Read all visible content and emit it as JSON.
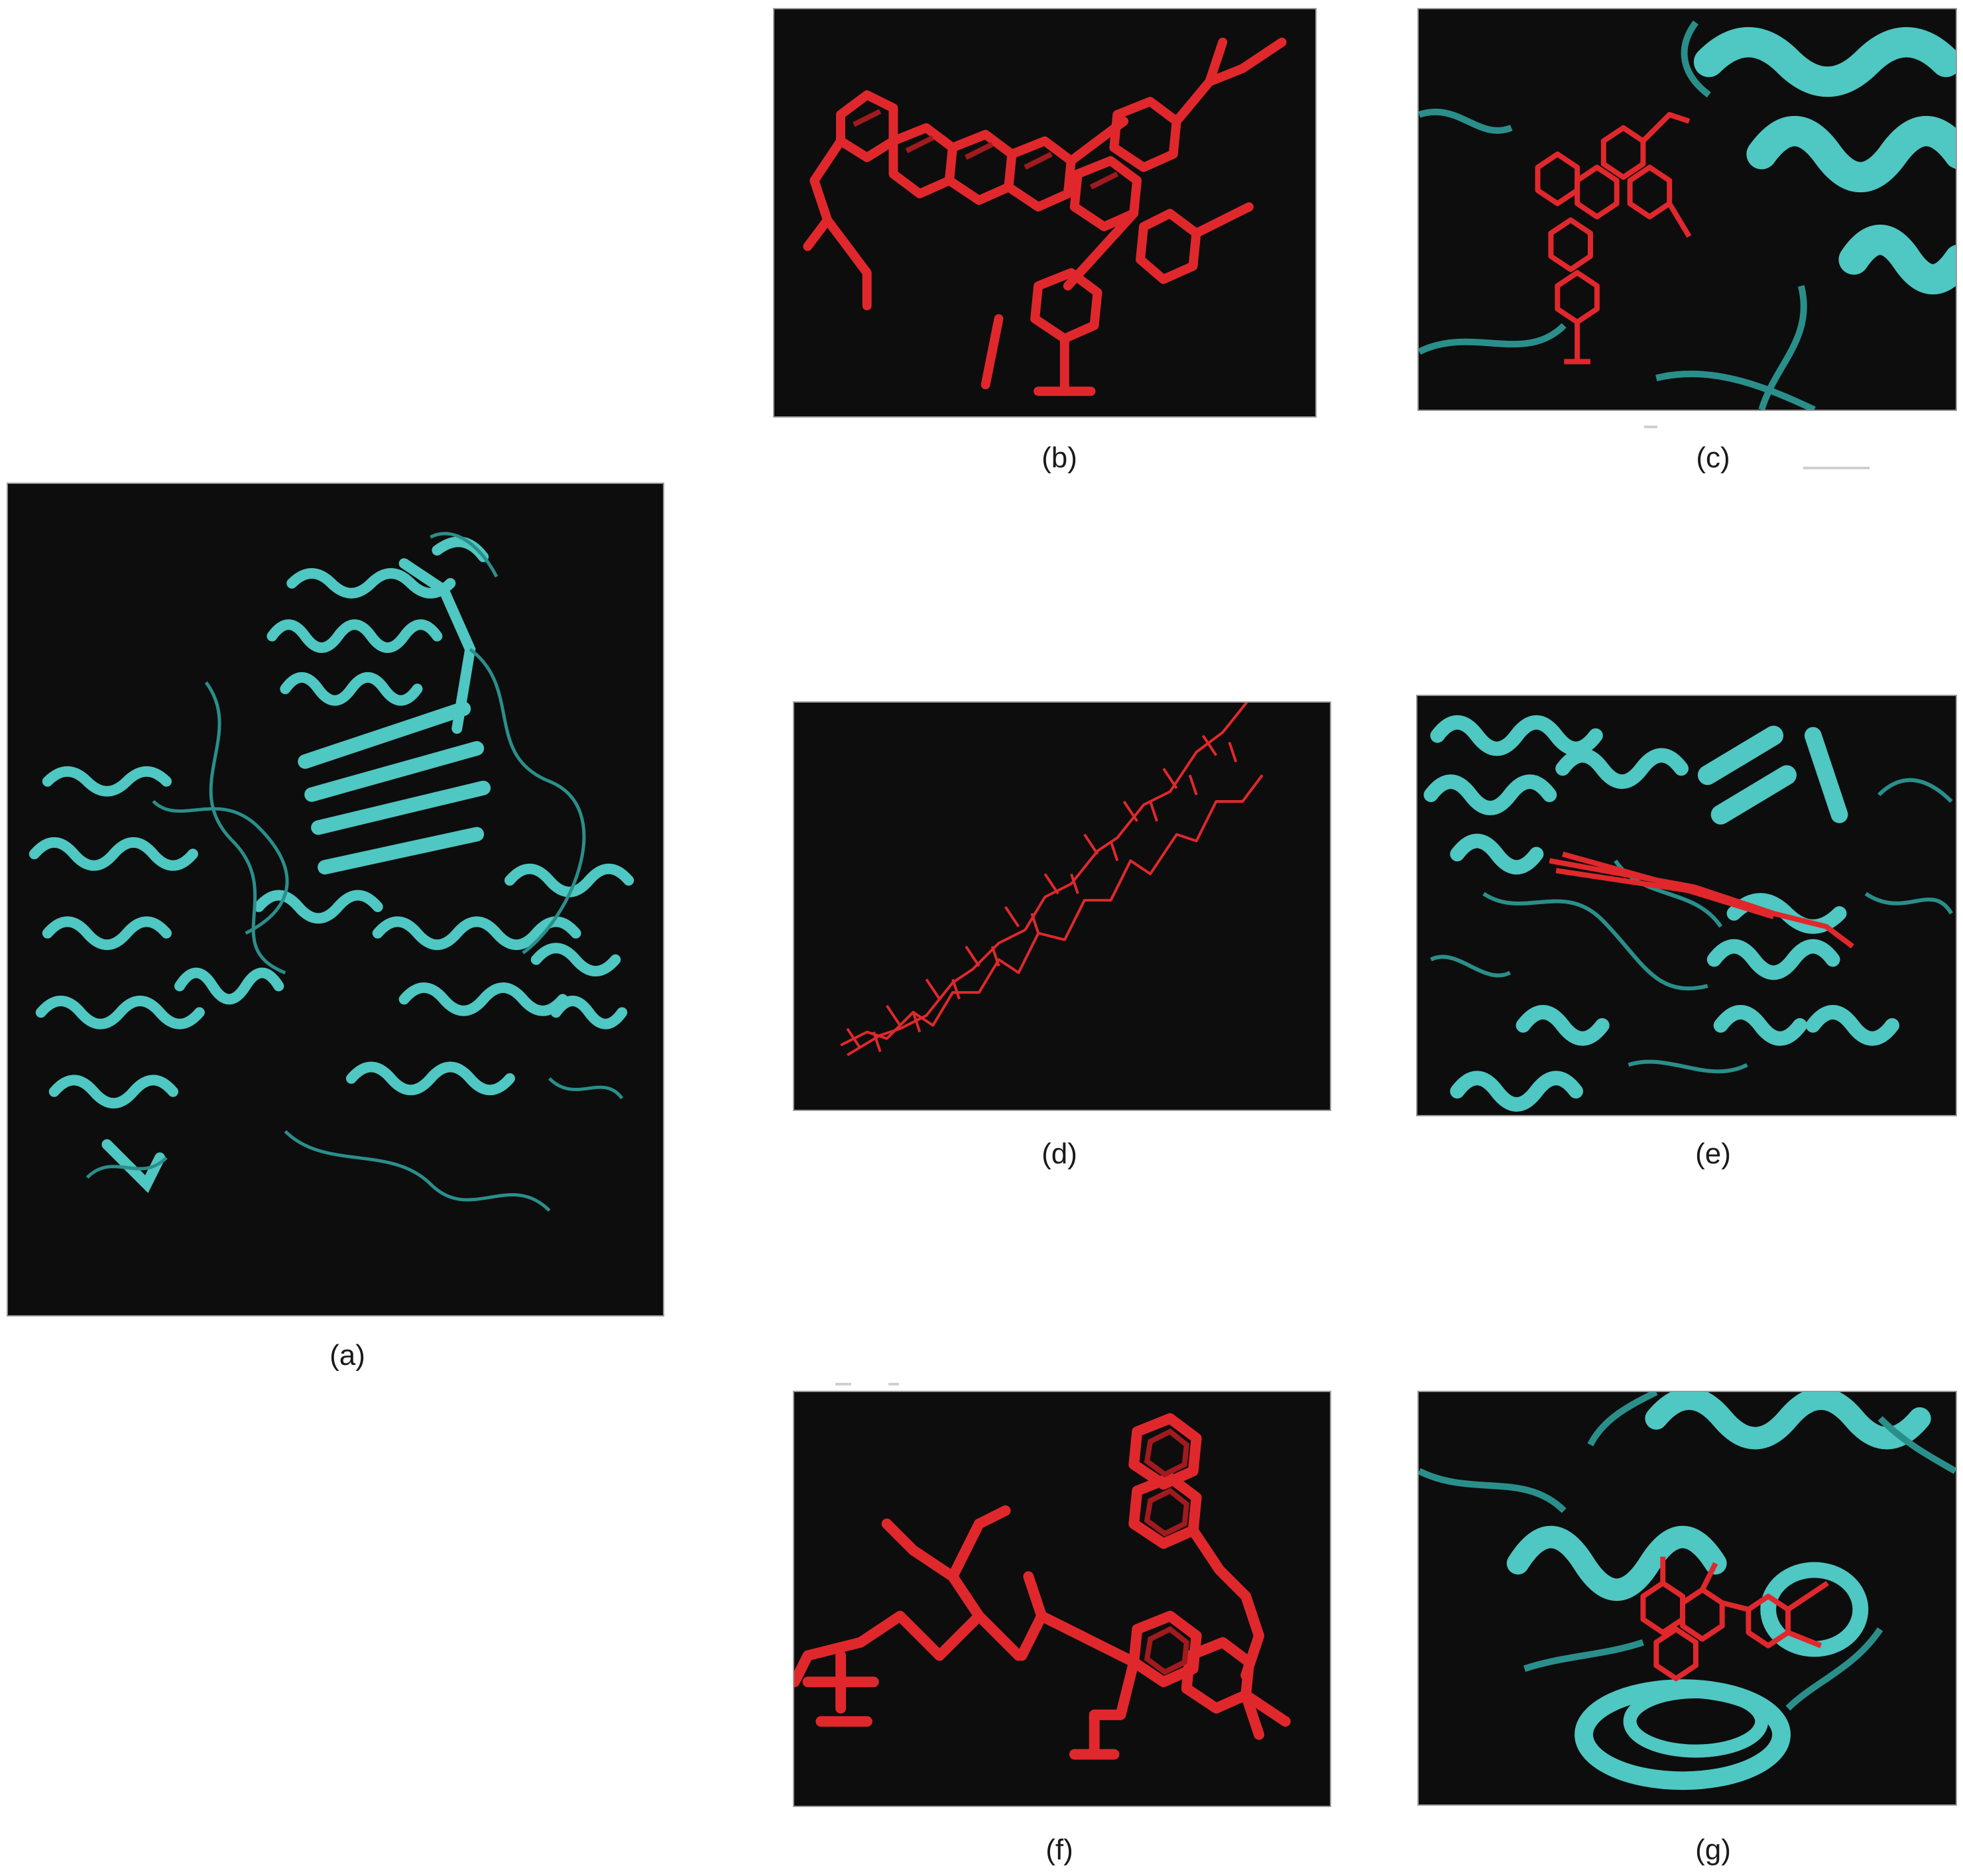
{
  "figure": {
    "colors": {
      "background": "#ffffff",
      "panel_background": "#0d0d0d",
      "protein_cyan": "#4fc7c2",
      "protein_cyan_dark": "#2a8f8b",
      "ligand_red": "#e0282c",
      "ligand_red_dark": "#a01a1e"
    },
    "panels": [
      {
        "id": "a",
        "caption": "(a)",
        "content": "protein-ribbon-full"
      },
      {
        "id": "b",
        "caption": "(b)",
        "content": "ligand-stick"
      },
      {
        "id": "c",
        "caption": "(c)",
        "content": "protein-ligand-complex"
      },
      {
        "id": "d",
        "caption": "(d)",
        "content": "ligand-line"
      },
      {
        "id": "e",
        "caption": "(e)",
        "content": "protein-ligand-complex"
      },
      {
        "id": "f",
        "caption": "(f)",
        "content": "ligand-stick"
      },
      {
        "id": "g",
        "caption": "(g)",
        "content": "protein-ligand-complex"
      }
    ]
  }
}
